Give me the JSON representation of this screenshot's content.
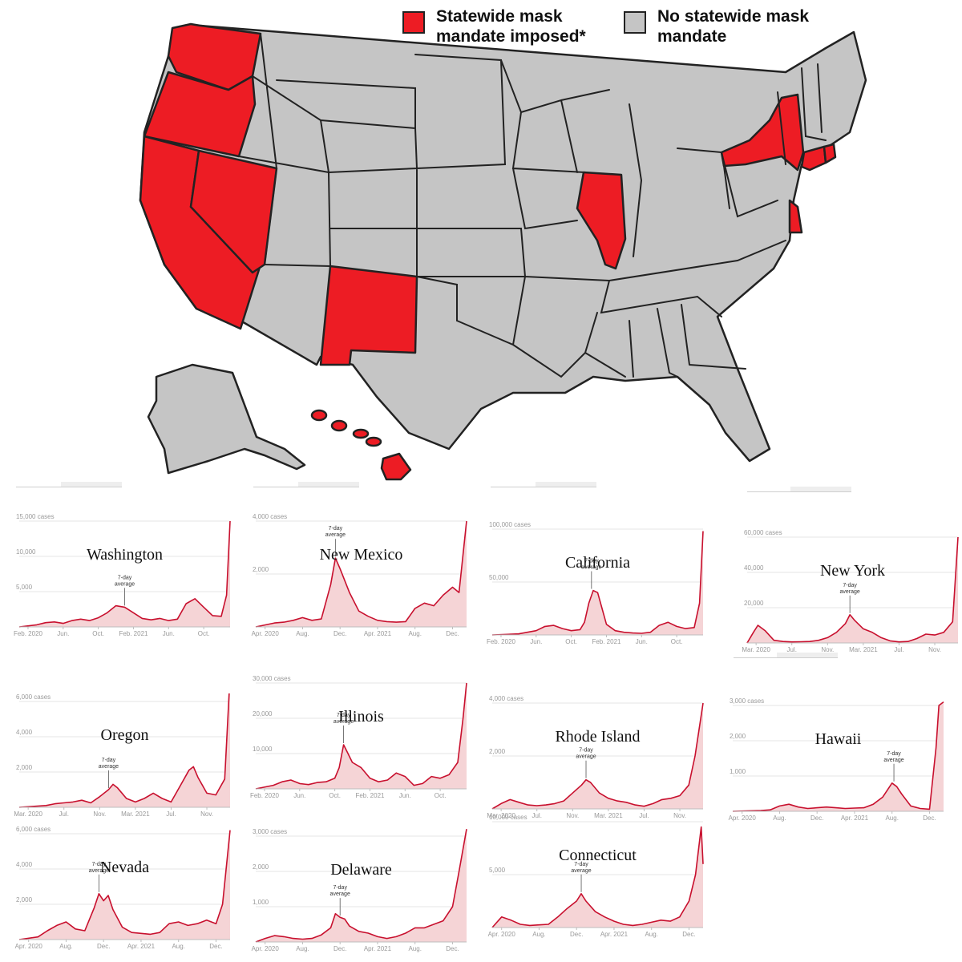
{
  "legend": {
    "mandate_label": "Statewide mask mandate imposed*",
    "none_label": "No statewide mask mandate",
    "mandate_color": "#ed1c24",
    "none_color": "#c5c5c5"
  },
  "map": {
    "mandate_states": [
      "Washington",
      "Oregon",
      "California",
      "Nevada",
      "New Mexico",
      "Illinois",
      "New York",
      "Connecticut",
      "Rhode Island",
      "Delaware",
      "Hawaii"
    ]
  },
  "series_color": "#c8102e",
  "fill_color": "#f5d4d6",
  "annotation_label": "7-day average",
  "chart_data": [
    {
      "type": "area",
      "title": "Washington",
      "ylabel_unit": "cases",
      "ylim": [
        0,
        15000
      ],
      "yticks": [
        5000,
        10000,
        15000
      ],
      "ytick_labels": [
        "5,000",
        "10,000",
        "15,000 cases"
      ],
      "xticks": [
        {
          "label": "Feb. 2020",
          "t": 1
        },
        {
          "label": "Jun.",
          "t": 5
        },
        {
          "label": "Oct.",
          "t": 9
        },
        {
          "label": "Feb. 2021",
          "t": 13
        },
        {
          "label": "Jun.",
          "t": 17
        },
        {
          "label": "Oct.",
          "t": 21
        }
      ],
      "tmax": 24,
      "annotation_t": 12,
      "x": [
        0,
        2,
        3,
        4,
        5,
        6,
        7,
        8,
        9,
        10,
        11,
        12,
        13,
        14,
        15,
        16,
        17,
        18,
        19,
        20,
        21,
        22,
        23,
        23.6,
        24
      ],
      "values": [
        0,
        300,
        600,
        700,
        500,
        900,
        1100,
        900,
        1300,
        2000,
        3000,
        2800,
        2000,
        1200,
        1000,
        1200,
        900,
        1100,
        3300,
        4000,
        2800,
        1600,
        1500,
        4500,
        15000
      ]
    },
    {
      "type": "area",
      "title": "New Mexico",
      "ylabel_unit": "cases",
      "ylim": [
        0,
        4000
      ],
      "yticks": [
        2000,
        4000
      ],
      "ytick_labels": [
        "2,000",
        "4,000 cases"
      ],
      "xticks": [
        {
          "label": "Apr. 2020",
          "t": 1
        },
        {
          "label": "Aug.",
          "t": 5
        },
        {
          "label": "Dec.",
          "t": 9
        },
        {
          "label": "Apr. 2021",
          "t": 13
        },
        {
          "label": "Aug.",
          "t": 17
        },
        {
          "label": "Dec.",
          "t": 21
        }
      ],
      "tmax": 22.5,
      "annotation_t": 8.5,
      "x": [
        0,
        2,
        3,
        4,
        5,
        6,
        7,
        8,
        8.5,
        9,
        10,
        11,
        12,
        13,
        14,
        15,
        16,
        17,
        18,
        19,
        20,
        21,
        21.7,
        22.5
      ],
      "values": [
        0,
        150,
        180,
        250,
        350,
        250,
        300,
        1600,
        2600,
        2200,
        1300,
        600,
        400,
        250,
        200,
        180,
        200,
        700,
        900,
        800,
        1200,
        1500,
        1300,
        4000
      ]
    },
    {
      "type": "area",
      "title": "California",
      "ylabel_unit": "cases",
      "ylim": [
        0,
        100000
      ],
      "yticks": [
        50000,
        100000
      ],
      "ytick_labels": [
        "50,000",
        "100,000 cases"
      ],
      "xticks": [
        {
          "label": "Feb. 2020",
          "t": 1
        },
        {
          "label": "Jun.",
          "t": 5
        },
        {
          "label": "Oct.",
          "t": 9
        },
        {
          "label": "Feb. 2021",
          "t": 13
        },
        {
          "label": "Jun.",
          "t": 17
        },
        {
          "label": "Oct.",
          "t": 21
        }
      ],
      "tmax": 24,
      "annotation_t": 11.3,
      "x": [
        0,
        3,
        4,
        5,
        6,
        7,
        8,
        9,
        10,
        10.5,
        11,
        11.5,
        12,
        12.5,
        13,
        14,
        15,
        16,
        17,
        18,
        19,
        20,
        21,
        22,
        23,
        23.6,
        24
      ],
      "values": [
        0,
        1000,
        2500,
        4000,
        8000,
        9000,
        6000,
        4000,
        5000,
        12000,
        30000,
        42000,
        40000,
        25000,
        10000,
        4000,
        2500,
        1800,
        1500,
        2500,
        9000,
        12000,
        8000,
        6000,
        7000,
        30000,
        98000
      ]
    },
    {
      "type": "area",
      "title": "New York",
      "ylabel_unit": "cases",
      "ylim": [
        0,
        60000
      ],
      "yticks": [
        20000,
        40000,
        60000
      ],
      "ytick_labels": [
        "20,000",
        "40,000",
        "60,000 cases"
      ],
      "xticks": [
        {
          "label": "Mar. 2020",
          "t": 1
        },
        {
          "label": "Jul.",
          "t": 5
        },
        {
          "label": "Nov.",
          "t": 9
        },
        {
          "label": "Mar. 2021",
          "t": 13
        },
        {
          "label": "Jul.",
          "t": 17
        },
        {
          "label": "Nov.",
          "t": 21
        }
      ],
      "tmax": 23.6,
      "annotation_t": 11.5,
      "x": [
        0,
        0.7,
        1.2,
        2,
        3,
        4,
        5,
        6,
        7,
        8,
        9,
        10,
        11,
        11.5,
        12,
        13,
        14,
        15,
        16,
        17,
        18,
        19,
        20,
        21,
        22,
        23,
        23.6
      ],
      "values": [
        0,
        6000,
        10000,
        7000,
        1500,
        800,
        600,
        700,
        800,
        1500,
        3000,
        6000,
        11000,
        16000,
        13000,
        8000,
        6000,
        3000,
        1200,
        600,
        800,
        2500,
        5000,
        4500,
        6000,
        12000,
        60000
      ]
    },
    {
      "type": "area",
      "title": "Oregon",
      "ylabel_unit": "cases",
      "ylim": [
        0,
        6000
      ],
      "yticks": [
        2000,
        4000,
        6000
      ],
      "ytick_labels": [
        "2,000",
        "4,000",
        "6,000 cases"
      ],
      "xticks": [
        {
          "label": "Mar. 2020",
          "t": 1
        },
        {
          "label": "Jul.",
          "t": 5
        },
        {
          "label": "Nov.",
          "t": 9
        },
        {
          "label": "Mar. 2021",
          "t": 13
        },
        {
          "label": "Jul.",
          "t": 17
        },
        {
          "label": "Nov.",
          "t": 21
        }
      ],
      "tmax": 23.6,
      "annotation_t": 10,
      "x": [
        0,
        3,
        4,
        5,
        6,
        7,
        8,
        9,
        10,
        10.5,
        11,
        12,
        13,
        14,
        15,
        16,
        17,
        18,
        19,
        19.5,
        20,
        21,
        22,
        23,
        23.6
      ],
      "values": [
        0,
        100,
        200,
        250,
        300,
        400,
        250,
        600,
        1000,
        1300,
        1100,
        500,
        300,
        500,
        800,
        500,
        300,
        1200,
        2100,
        2300,
        1700,
        800,
        700,
        1600,
        7500
      ]
    },
    {
      "type": "area",
      "title": "Illinois",
      "ylabel_unit": "cases",
      "ylim": [
        0,
        30000
      ],
      "yticks": [
        10000,
        20000,
        30000
      ],
      "ytick_labels": [
        "10,000",
        "20,000",
        "30,000 cases"
      ],
      "xticks": [
        {
          "label": "Feb. 2020",
          "t": 1
        },
        {
          "label": "Jun.",
          "t": 5
        },
        {
          "label": "Oct.",
          "t": 9
        },
        {
          "label": "Feb. 2021",
          "t": 13
        },
        {
          "label": "Jun.",
          "t": 17
        },
        {
          "label": "Oct.",
          "t": 21
        }
      ],
      "tmax": 24,
      "annotation_t": 10,
      "x": [
        0,
        2,
        3,
        4,
        5,
        6,
        7,
        8,
        9,
        9.5,
        10,
        10.5,
        11,
        12,
        13,
        14,
        15,
        16,
        17,
        18,
        19,
        20,
        21,
        22,
        23,
        23.6,
        24
      ],
      "values": [
        0,
        1000,
        2000,
        2500,
        1500,
        1200,
        1800,
        2000,
        3000,
        6000,
        12500,
        10000,
        7500,
        6000,
        3000,
        2000,
        2500,
        4500,
        3500,
        1000,
        1500,
        3500,
        3000,
        4000,
        7500,
        20000,
        30000
      ]
    },
    {
      "type": "area",
      "title": "Rhode Island",
      "ylabel_unit": "cases",
      "ylim": [
        0,
        4000
      ],
      "yticks": [
        2000,
        4000
      ],
      "ytick_labels": [
        "2,000",
        "4,000 cases"
      ],
      "xticks": [
        {
          "label": "Mar. 2020",
          "t": 1
        },
        {
          "label": "Jul.",
          "t": 5
        },
        {
          "label": "Nov.",
          "t": 9
        },
        {
          "label": "Mar. 2021",
          "t": 13
        },
        {
          "label": "Jul.",
          "t": 17
        },
        {
          "label": "Nov.",
          "t": 21
        }
      ],
      "tmax": 23.6,
      "annotation_t": 10.5,
      "x": [
        0,
        1,
        2,
        3,
        4,
        5,
        6,
        7,
        8,
        9,
        10,
        10.5,
        11,
        11.5,
        12,
        13,
        14,
        15,
        16,
        17,
        18,
        19,
        20,
        21,
        22,
        22.7,
        23.6
      ],
      "values": [
        0,
        200,
        350,
        250,
        150,
        120,
        150,
        200,
        300,
        600,
        900,
        1100,
        1000,
        800,
        600,
        400,
        300,
        250,
        150,
        100,
        200,
        350,
        400,
        500,
        900,
        2000,
        4000
      ]
    },
    {
      "type": "area",
      "title": "Hawaii",
      "ylabel_unit": "cases",
      "ylim": [
        0,
        3000
      ],
      "yticks": [
        1000,
        2000,
        3000
      ],
      "ytick_labels": [
        "1,000",
        "2,000",
        "3,000 cases"
      ],
      "xticks": [
        {
          "label": "Apr. 2020",
          "t": 1
        },
        {
          "label": "Aug.",
          "t": 5
        },
        {
          "label": "Dec.",
          "t": 9
        },
        {
          "label": "Apr. 2021",
          "t": 13
        },
        {
          "label": "Aug.",
          "t": 17
        },
        {
          "label": "Dec.",
          "t": 21
        }
      ],
      "tmax": 22.5,
      "annotation_t": 17.2,
      "x": [
        0,
        3,
        4,
        5,
        6,
        7,
        8,
        9,
        10,
        11,
        12,
        13,
        14,
        15,
        16,
        16.5,
        17,
        17.5,
        18,
        19,
        20,
        21,
        21.7,
        22,
        22.5
      ],
      "values": [
        0,
        20,
        40,
        150,
        200,
        120,
        80,
        100,
        120,
        100,
        80,
        90,
        100,
        200,
        400,
        600,
        800,
        700,
        500,
        150,
        80,
        60,
        1800,
        3000,
        3100
      ]
    },
    {
      "type": "area",
      "title": "Nevada",
      "ylabel_unit": "cases",
      "ylim": [
        0,
        6000
      ],
      "yticks": [
        2000,
        4000,
        6000
      ],
      "ytick_labels": [
        "2,000",
        "4,000",
        "6,000 cases"
      ],
      "xticks": [
        {
          "label": "Apr. 2020",
          "t": 1
        },
        {
          "label": "Aug.",
          "t": 5
        },
        {
          "label": "Dec.",
          "t": 9
        },
        {
          "label": "Apr. 2021",
          "t": 13
        },
        {
          "label": "Aug.",
          "t": 17
        },
        {
          "label": "Dec.",
          "t": 21
        }
      ],
      "tmax": 22.5,
      "annotation_t": 8.5,
      "x": [
        0,
        2,
        3,
        4,
        5,
        6,
        7,
        8,
        8.5,
        9,
        9.5,
        10,
        11,
        12,
        13,
        14,
        15,
        16,
        17,
        18,
        19,
        20,
        21,
        21.7,
        22.5
      ],
      "values": [
        0,
        150,
        500,
        800,
        1000,
        600,
        500,
        1800,
        2600,
        2200,
        2500,
        1700,
        700,
        400,
        350,
        300,
        400,
        900,
        1000,
        800,
        900,
        1100,
        900,
        2000,
        6200
      ]
    },
    {
      "type": "area",
      "title": "Delaware",
      "ylabel_unit": "cases",
      "ylim": [
        0,
        3000
      ],
      "yticks": [
        1000,
        2000,
        3000
      ],
      "ytick_labels": [
        "1,000",
        "2,000",
        "3,000 cases"
      ],
      "xticks": [
        {
          "label": "Apr. 2020",
          "t": 1
        },
        {
          "label": "Aug.",
          "t": 5
        },
        {
          "label": "Dec.",
          "t": 9
        },
        {
          "label": "Apr. 2021",
          "t": 13
        },
        {
          "label": "Aug.",
          "t": 17
        },
        {
          "label": "Dec.",
          "t": 21
        }
      ],
      "tmax": 22.5,
      "annotation_t": 9,
      "x": [
        0,
        1,
        2,
        3,
        4,
        5,
        6,
        7,
        8,
        8.5,
        9,
        9.5,
        10,
        11,
        12,
        13,
        14,
        15,
        16,
        17,
        18,
        19,
        20,
        21,
        21.7,
        22.5
      ],
      "values": [
        0,
        100,
        180,
        150,
        100,
        80,
        100,
        200,
        400,
        800,
        700,
        650,
        450,
        300,
        250,
        150,
        100,
        150,
        250,
        400,
        400,
        500,
        600,
        1000,
        2000,
        3200
      ]
    },
    {
      "type": "area",
      "title": "Connecticut",
      "ylabel_unit": "cases",
      "ylim": [
        0,
        10000
      ],
      "yticks": [
        5000,
        10000
      ],
      "ytick_labels": [
        "5,000",
        "10,000 cases"
      ],
      "xticks": [
        {
          "label": "Apr. 2020",
          "t": 1
        },
        {
          "label": "Aug.",
          "t": 5
        },
        {
          "label": "Dec.",
          "t": 9
        },
        {
          "label": "Apr. 2021",
          "t": 13
        },
        {
          "label": "Aug.",
          "t": 17
        },
        {
          "label": "Dec.",
          "t": 21
        }
      ],
      "tmax": 22.5,
      "annotation_t": 9.5,
      "x": [
        0,
        1,
        2,
        3,
        4,
        5,
        6,
        7,
        8,
        9,
        9.5,
        10,
        11,
        12,
        13,
        14,
        15,
        16,
        17,
        18,
        19,
        20,
        21,
        21.7,
        22.3,
        22.5
      ],
      "values": [
        0,
        1000,
        700,
        300,
        200,
        250,
        300,
        1000,
        1800,
        2500,
        3200,
        2500,
        1500,
        1000,
        600,
        300,
        200,
        300,
        500,
        700,
        600,
        1000,
        2500,
        5000,
        9500,
        6000
      ]
    }
  ]
}
